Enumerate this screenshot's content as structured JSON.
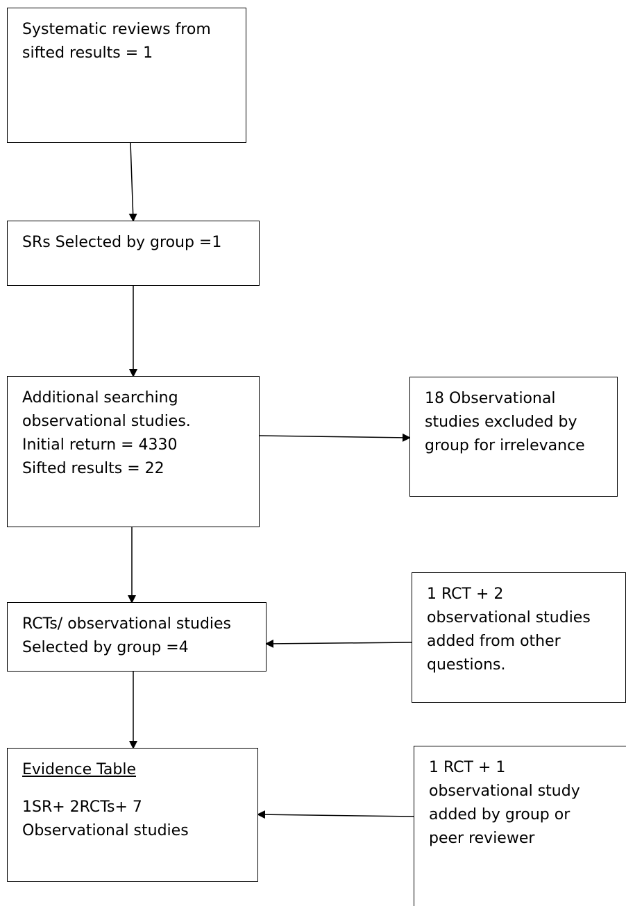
{
  "nodes": {
    "systematic_reviews": {
      "lines": [
        "Systematic reviews from",
        "sifted results = 1"
      ]
    },
    "srs_selected": {
      "lines": [
        "SRs Selected by group =1"
      ]
    },
    "additional_searching": {
      "lines": [
        "Additional searching",
        "observational studies.",
        "Initial return = 4330",
        "Sifted results = 22"
      ]
    },
    "observational_excluded": {
      "lines": [
        "18 Observational",
        "studies excluded by",
        "group for irrelevance"
      ]
    },
    "rcts_selected": {
      "lines": [
        "RCTs/ observational studies",
        "Selected by group =4"
      ]
    },
    "added_other_questions": {
      "lines": [
        "1 RCT + 2",
        "observational studies",
        "added from other",
        "questions."
      ]
    },
    "evidence_table": {
      "heading": "Evidence Table",
      "lines": [
        "1SR+ 2RCTs+ 7",
        "Observational studies"
      ]
    },
    "added_by_group": {
      "lines": [
        "1 RCT + 1",
        "observational study",
        "added by group or",
        "peer reviewer"
      ]
    }
  }
}
